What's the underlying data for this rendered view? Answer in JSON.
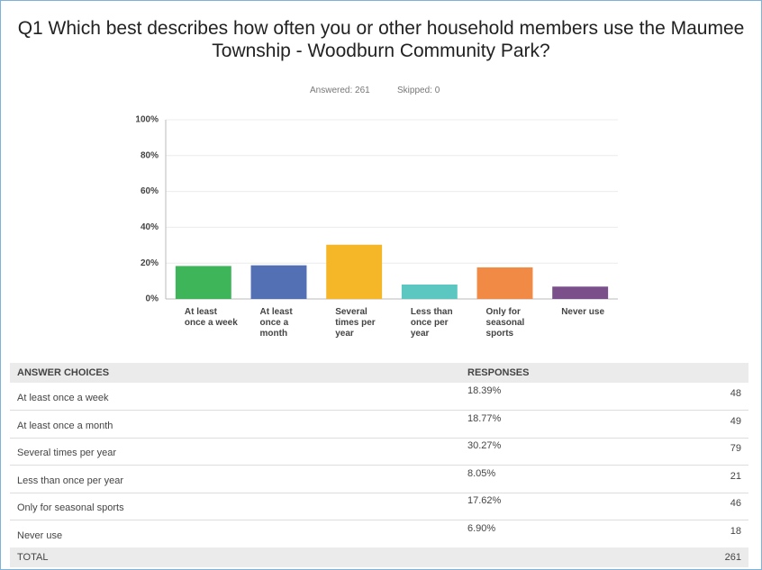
{
  "chart_data": {
    "type": "bar",
    "title": "Q1 Which best describes how often you or other household members use the Maumee Township - Woodburn Community Park?",
    "answered": "Answered: 261",
    "skipped": "Skipped: 0",
    "categories": [
      "At least once a week",
      "At least once a month",
      "Several times per year",
      "Less than once per year",
      "Only for seasonal sports",
      "Never use"
    ],
    "values": [
      18.39,
      18.77,
      30.27,
      8.05,
      17.62,
      6.9
    ],
    "colors": [
      "#3fb55a",
      "#5470b5",
      "#f5b728",
      "#5cc6c0",
      "#f08a45",
      "#7a4f8a"
    ],
    "ylim": [
      0,
      100
    ],
    "yticks": [
      {
        "value": 0,
        "label": "0%"
      },
      {
        "value": 20,
        "label": "20%"
      },
      {
        "value": 40,
        "label": "40%"
      },
      {
        "value": 60,
        "label": "60%"
      },
      {
        "value": 80,
        "label": "80%"
      },
      {
        "value": 100,
        "label": "100%"
      }
    ],
    "grid": true
  },
  "table": {
    "headers": [
      "ANSWER CHOICES",
      "RESPONSES"
    ],
    "rows": [
      [
        "At least once a week",
        "18.39%",
        48
      ],
      [
        "At least once a month",
        "18.77%",
        49
      ],
      [
        "Several times per year",
        "30.27%",
        79
      ],
      [
        "Less than once per year",
        "8.05%",
        21
      ],
      [
        "Only for seasonal sports",
        "17.62%",
        46
      ],
      [
        "Never use",
        "6.90%",
        18
      ]
    ],
    "total": [
      "TOTAL",
      261
    ]
  }
}
